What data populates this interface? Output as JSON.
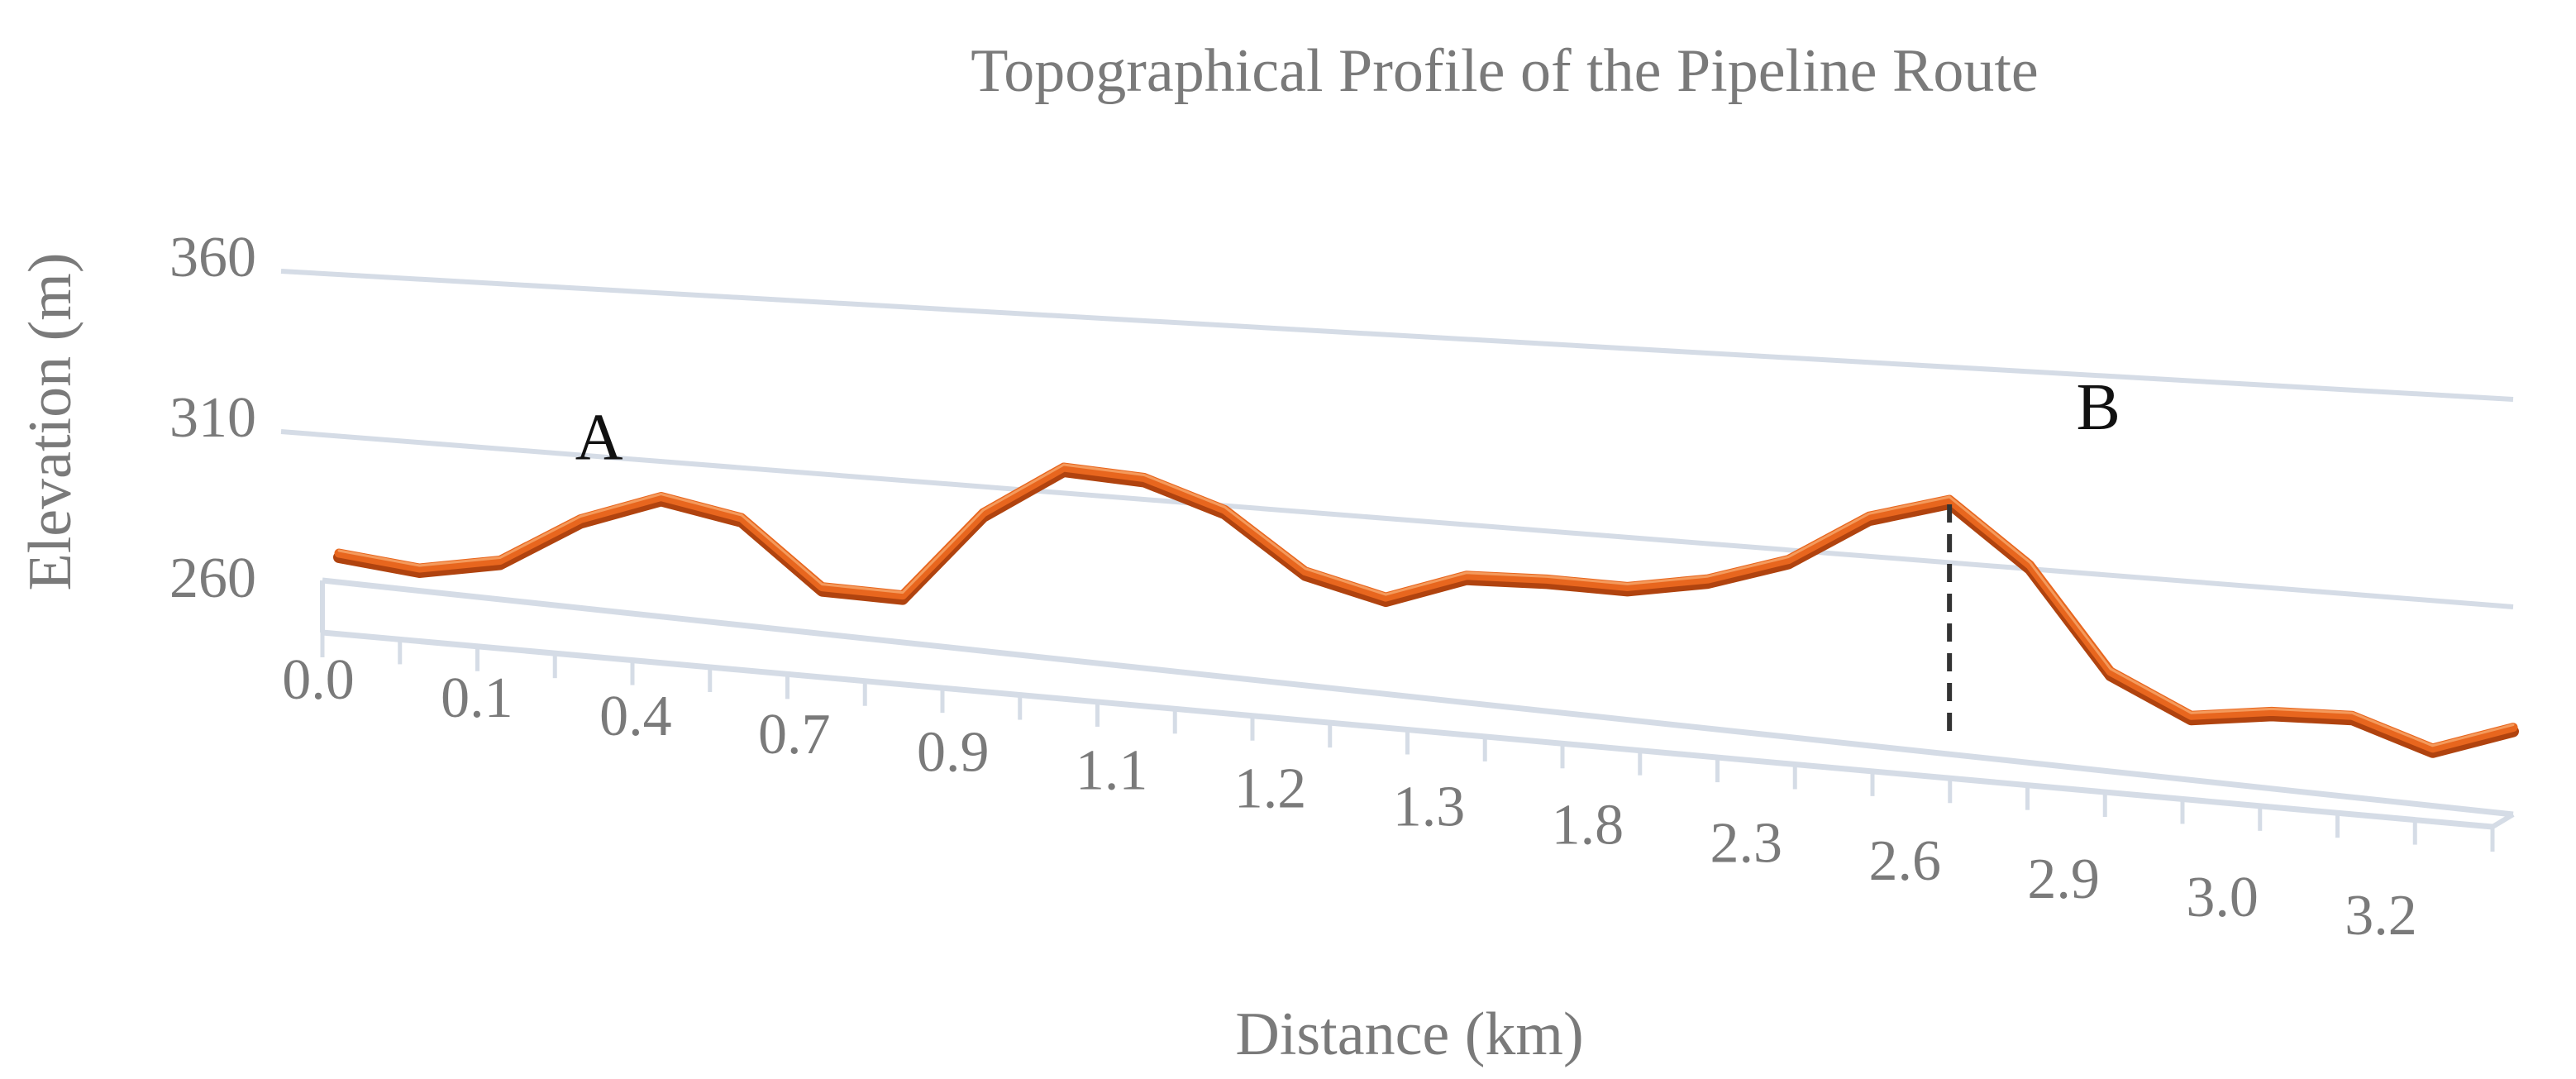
{
  "chart_data": {
    "type": "line",
    "title": "Topographical Profile of the Pipeline Route",
    "xlabel": "Distance (km)",
    "ylabel": "Elevation (m)",
    "y_ticks": [
      260,
      310,
      360
    ],
    "ylim": [
      260,
      360
    ],
    "x_tick_labels": [
      "0.0",
      "0.1",
      "0.4",
      "0.7",
      "0.9",
      "1.1",
      "1.2",
      "1.3",
      "1.8",
      "2.3",
      "2.6",
      "2.9",
      "3.0",
      "3.2"
    ],
    "grid": true,
    "legend": "none",
    "series": [
      {
        "color": "#e8661e",
        "values": [
          268,
          266,
          271,
          286,
          295,
          291,
          273,
          273,
          299,
          314,
          313,
          306,
          291,
          286,
          294,
          295,
          295,
          299,
          306,
          319,
          325,
          310,
          285,
          276,
          279,
          280,
          274,
          281
        ]
      }
    ],
    "annotations": [
      {
        "label": "A",
        "point_index": 4
      },
      {
        "label": "B",
        "point_index": 20,
        "dashed_drop_line": true
      }
    ]
  }
}
